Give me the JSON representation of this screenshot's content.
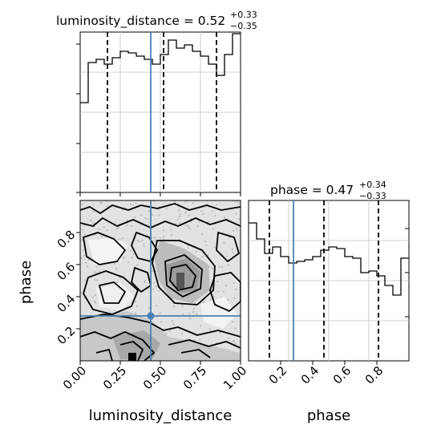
{
  "chart_data": [
    {
      "type": "histogram",
      "panel": "luminosity_distance-1d",
      "title_param": "luminosity_distance",
      "title_median": "0.52",
      "title_plus": "+0.33",
      "title_minus": "−0.35",
      "xlim": [
        0.0,
        1.0
      ],
      "bin_edges": [
        0.0,
        0.05,
        0.1,
        0.15,
        0.2,
        0.25,
        0.3,
        0.35,
        0.4,
        0.45,
        0.5,
        0.55,
        0.6,
        0.65,
        0.7,
        0.75,
        0.8,
        0.85,
        0.9,
        0.95,
        1.0
      ],
      "values": [
        0.56,
        0.81,
        0.83,
        0.8,
        0.84,
        0.88,
        0.87,
        0.85,
        0.83,
        0.8,
        0.86,
        0.95,
        0.9,
        0.92,
        0.88,
        0.85,
        0.8,
        0.73,
        0.86,
        0.99
      ],
      "quantile_lines": [
        0.17,
        0.52,
        0.85
      ],
      "truth": 0.44,
      "grid": true
    },
    {
      "type": "histogram",
      "panel": "phase-1d",
      "title_param": "phase",
      "title_median": "0.47",
      "title_plus": "+0.34",
      "title_minus": "−0.33",
      "xlim": [
        0.0,
        1.0
      ],
      "xticks": [
        "0.2",
        "0.4",
        "0.6",
        "0.8"
      ],
      "xlabel": "phase",
      "bin_edges": [
        0.0,
        0.05,
        0.1,
        0.15,
        0.2,
        0.25,
        0.3,
        0.35,
        0.4,
        0.45,
        0.5,
        0.55,
        0.6,
        0.65,
        0.7,
        0.75,
        0.8,
        0.85,
        0.9,
        0.95,
        1.0
      ],
      "values": [
        0.86,
        0.76,
        0.67,
        0.71,
        0.65,
        0.61,
        0.62,
        0.63,
        0.65,
        0.69,
        0.71,
        0.7,
        0.65,
        0.64,
        0.55,
        0.56,
        0.53,
        0.47,
        0.41,
        0.64
      ],
      "quantile_lines": [
        0.13,
        0.47,
        0.81
      ],
      "truth": 0.28,
      "grid": true
    },
    {
      "type": "contour",
      "panel": "luminosity_distance-vs-phase",
      "xlabel": "luminosity_distance",
      "ylabel": "phase",
      "xlim": [
        0.0,
        1.0
      ],
      "ylim": [
        0.0,
        1.0
      ],
      "xticks": [
        "0.00",
        "0.25",
        "0.50",
        "0.75",
        "1.00"
      ],
      "yticks": [
        "0.2",
        "0.4",
        "0.6",
        "0.8"
      ],
      "truth": [
        0.44,
        0.28
      ],
      "levels": 4
    }
  ]
}
